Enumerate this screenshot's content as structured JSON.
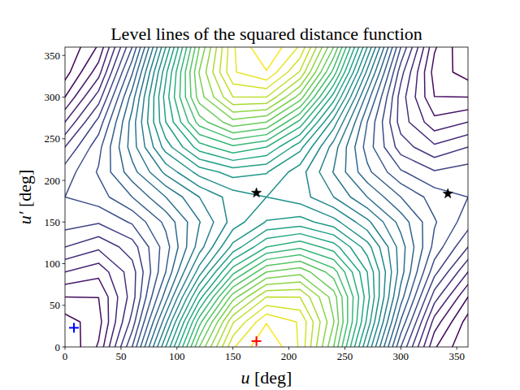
{
  "chart_data": {
    "type": "contour",
    "title": "Level lines of the squared distance function",
    "x_label": "u [deg]",
    "y_label": "u′ [deg]",
    "xlim": [
      0,
      360
    ],
    "ylim": [
      0,
      360
    ],
    "xticks": [
      0,
      50,
      100,
      150,
      200,
      250,
      300,
      350
    ],
    "yticks": [
      0,
      50,
      100,
      150,
      200,
      250,
      300,
      350
    ],
    "x": [
      0,
      30,
      60,
      90,
      120,
      150,
      180,
      210,
      240,
      270,
      300,
      330,
      360
    ],
    "y": [
      0,
      30,
      60,
      90,
      120,
      150,
      180,
      210,
      240,
      270,
      300,
      330,
      360
    ],
    "z": [
      [
        0.1,
        0.314,
        0.9,
        1.7,
        2.5,
        3.086,
        3.3,
        3.086,
        2.5,
        1.7,
        0.9,
        0.314,
        0.1
      ],
      [
        0.153,
        0.257,
        0.74,
        1.473,
        2.26,
        2.889,
        3.193,
        3.089,
        2.606,
        1.873,
        1.086,
        0.457,
        0.153
      ],
      [
        0.3,
        0.301,
        0.65,
        1.254,
        1.95,
        2.553,
        2.9,
        2.899,
        2.55,
        1.946,
        1.25,
        0.647,
        0.3
      ],
      [
        0.5,
        0.434,
        0.654,
        1.1,
        1.654,
        2.166,
        2.5,
        2.566,
        2.346,
        1.9,
        1.346,
        0.834,
        0.5
      ],
      [
        0.7,
        0.621,
        0.75,
        1.054,
        1.45,
        1.833,
        2.1,
        2.179,
        2.05,
        1.746,
        1.35,
        0.967,
        0.7
      ],
      [
        0.847,
        0.811,
        0.914,
        1.127,
        1.394,
        1.643,
        1.807,
        1.843,
        1.74,
        1.527,
        1.26,
        1.011,
        0.847
      ],
      [
        0.9,
        0.954,
        1.1,
        1.3,
        1.5,
        1.646,
        1.7,
        1.646,
        1.5,
        1.3,
        1.1,
        0.954,
        0.9
      ],
      [
        0.847,
        1.011,
        1.26,
        1.527,
        1.74,
        1.843,
        1.807,
        1.643,
        1.394,
        1.127,
        0.914,
        0.811,
        0.847
      ],
      [
        0.7,
        0.967,
        1.35,
        1.746,
        2.05,
        2.179,
        2.1,
        1.833,
        1.45,
        1.054,
        0.75,
        0.621,
        0.7
      ],
      [
        0.5,
        0.834,
        1.346,
        1.9,
        2.346,
        2.566,
        2.5,
        2.166,
        1.654,
        1.1,
        0.654,
        0.434,
        0.5
      ],
      [
        0.3,
        0.647,
        1.25,
        1.946,
        2.55,
        2.899,
        2.9,
        2.553,
        1.95,
        1.254,
        0.65,
        0.301,
        0.3
      ],
      [
        0.153,
        0.457,
        1.086,
        1.873,
        2.606,
        3.089,
        3.193,
        2.889,
        2.26,
        1.473,
        0.74,
        0.257,
        0.153
      ],
      [
        0.1,
        0.314,
        0.9,
        1.7,
        2.5,
        3.086,
        3.3,
        3.086,
        2.5,
        1.7,
        0.9,
        0.314,
        0.1
      ]
    ],
    "levels": [
      0.2,
      0.3,
      0.4,
      0.5,
      0.6,
      0.7,
      0.8,
      0.9,
      1.0,
      1.1,
      1.2,
      1.3,
      1.4,
      1.5,
      1.6,
      1.7,
      1.8,
      1.9,
      2.0,
      2.1,
      2.2,
      2.3,
      2.4,
      2.5,
      2.6,
      2.7,
      2.8,
      2.9,
      3.0,
      3.1,
      3.2
    ],
    "series": [
      {
        "type": "scatter",
        "marker": "plus",
        "color": "#0000ff",
        "x": [
          8
        ],
        "values": [
          23
        ]
      },
      {
        "type": "scatter",
        "marker": "plus",
        "color": "#ff0000",
        "x": [
          171
        ],
        "values": [
          7
        ]
      },
      {
        "type": "scatter",
        "marker": "star",
        "color": "#000000",
        "x": [
          171,
          342
        ],
        "values": [
          185,
          184
        ]
      }
    ]
  }
}
